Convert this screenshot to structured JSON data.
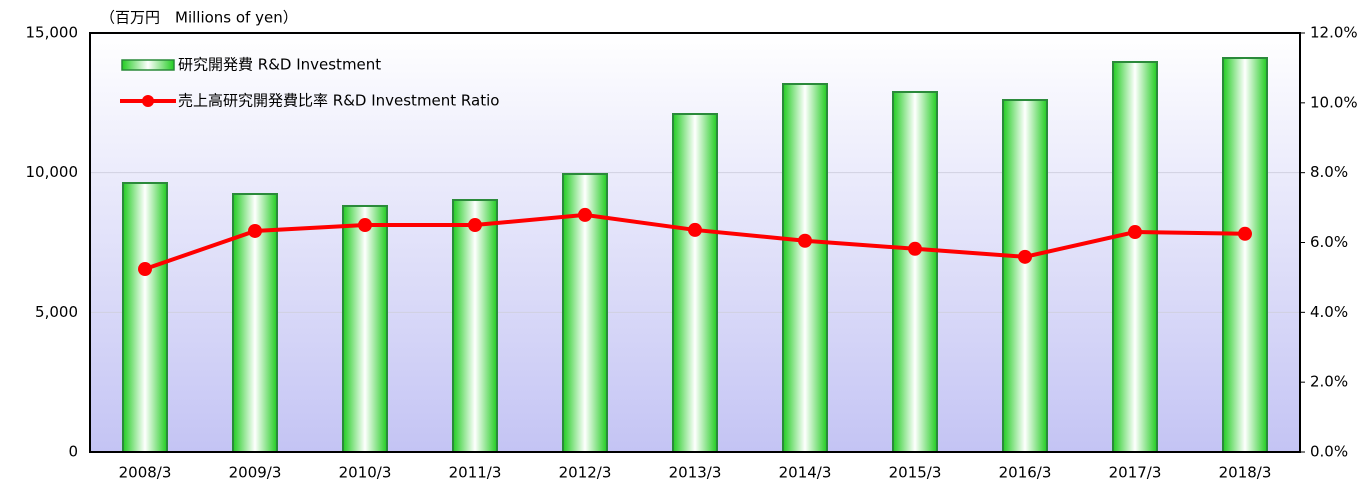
{
  "chart_data": {
    "type": "bar",
    "axis_label": "（百万円　Millions of yen）",
    "categories": [
      "2008/3",
      "2009/3",
      "2010/3",
      "2011/3",
      "2012/3",
      "2013/3",
      "2014/3",
      "2015/3",
      "2016/3",
      "2017/3",
      "2018/3"
    ],
    "series": [
      {
        "name": "研究開発費 R&D Investment",
        "type": "bar",
        "color": "#33cc33",
        "values": [
          9630,
          9236,
          8807,
          9021,
          9952,
          12100,
          13174,
          12888,
          12601,
          13962,
          14105
        ]
      },
      {
        "name": "売上高研究開発費比率 R&D Investment Ratio",
        "type": "line",
        "axis": "y2",
        "color": "#ff0000",
        "values": [
          5.24,
          6.33,
          6.5,
          6.5,
          6.79,
          6.36,
          6.05,
          5.82,
          5.59,
          6.3,
          6.25
        ]
      }
    ],
    "ylim": [
      0,
      15000
    ],
    "yticks": [
      0,
      {
        "value": 5000,
        "label": "5,000"
      },
      {
        "value": 10000,
        "label": "10,000"
      },
      {
        "value": 15000,
        "label": "15,000"
      }
    ],
    "y2lim": [
      0,
      12
    ],
    "y2ticks": [
      {
        "value": 0,
        "label": "0.0%"
      },
      {
        "value": 2,
        "label": "2.0%"
      },
      {
        "value": 4,
        "label": "4.0%"
      },
      {
        "value": 6,
        "label": "6.0%"
      },
      {
        "value": 8,
        "label": "8.0%"
      },
      {
        "value": 10,
        "label": "10.0%"
      },
      {
        "value": 12,
        "label": "12.0%"
      }
    ],
    "grid": true
  }
}
